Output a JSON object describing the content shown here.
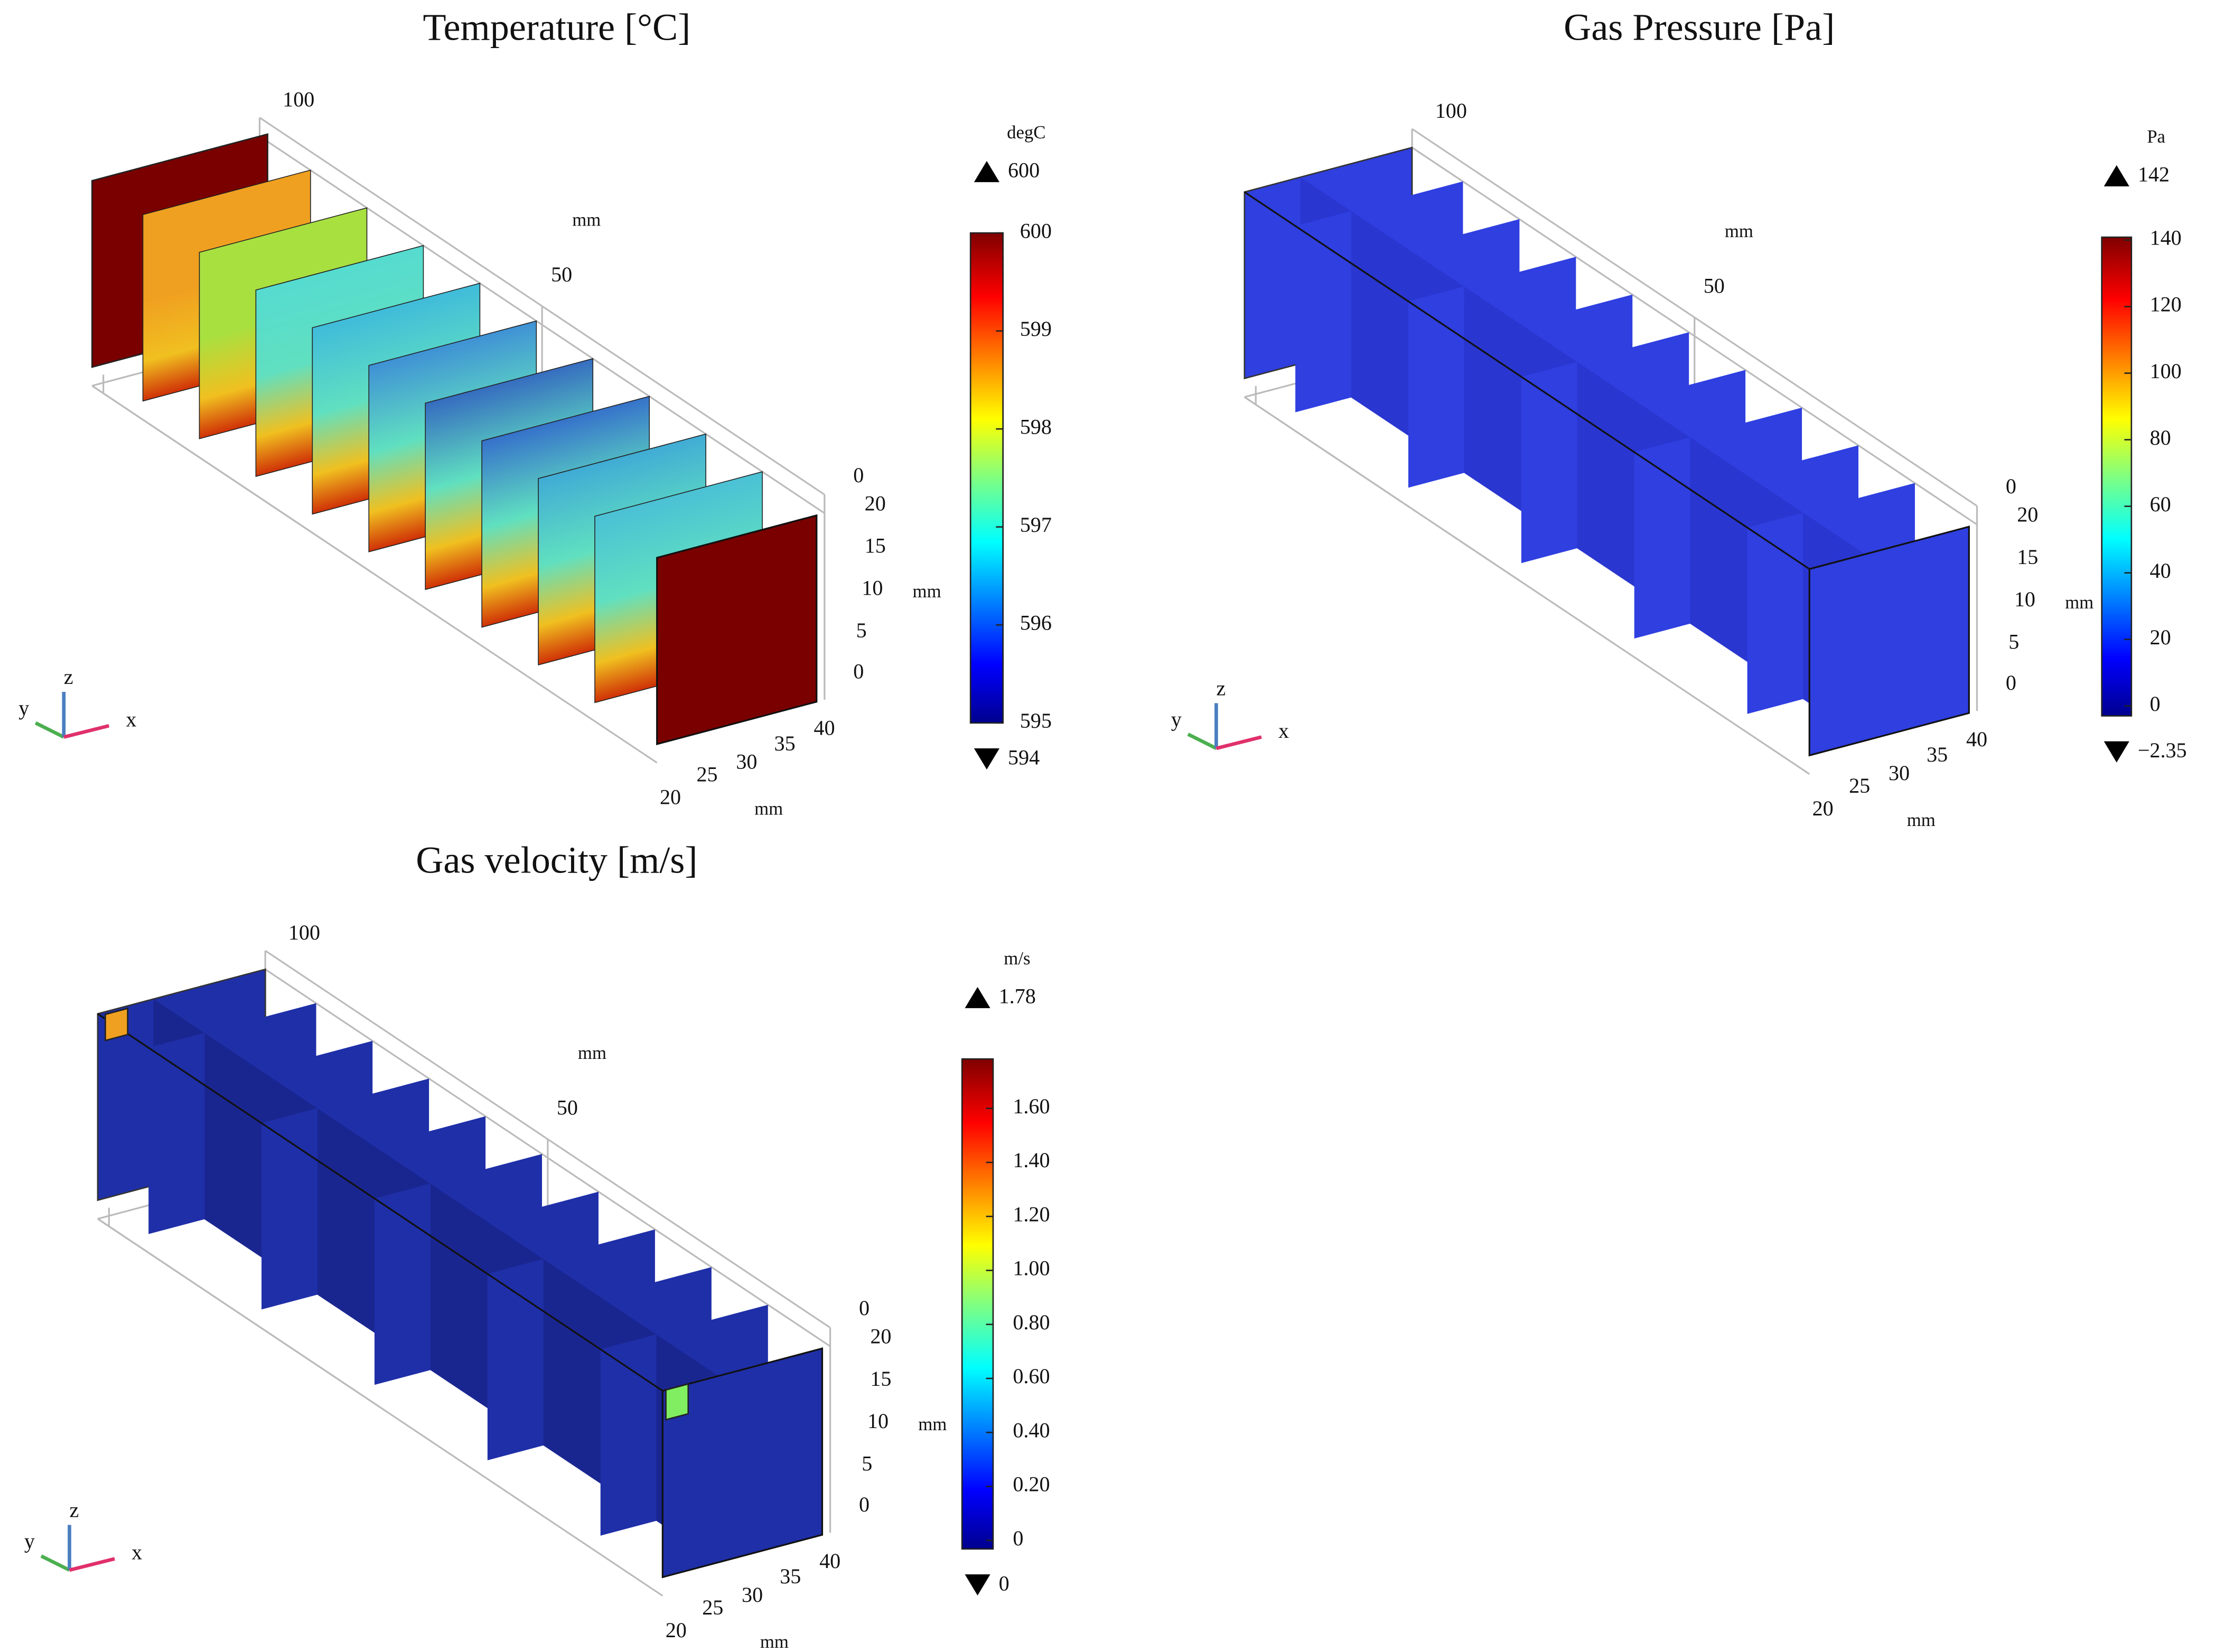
{
  "panels": [
    {
      "title": "Temperature [°C]",
      "length_ticks": [
        "100",
        "50",
        "0"
      ],
      "z_ticks": [
        "20",
        "15",
        "10",
        "5",
        "0"
      ],
      "x_ticks": [
        "20",
        "25",
        "30",
        "35",
        "40"
      ],
      "axis_labels": [
        "mm",
        "mm",
        "mm"
      ],
      "triad": [
        "y",
        "z",
        "x"
      ],
      "colorbar": {
        "unit": "degC",
        "max": "600",
        "min": "594",
        "ticks": [
          "600",
          "599",
          "598",
          "597",
          "596",
          "595"
        ]
      }
    },
    {
      "title": "Gas Pressure [Pa]",
      "length_ticks": [
        "100",
        "50",
        "0"
      ],
      "z_ticks": [
        "20",
        "15",
        "10",
        "5",
        "0"
      ],
      "x_ticks": [
        "20",
        "25",
        "30",
        "35",
        "40"
      ],
      "axis_labels": [
        "mm",
        "mm",
        "mm"
      ],
      "triad": [
        "y",
        "z",
        "x"
      ],
      "colorbar": {
        "unit": "Pa",
        "max": "142",
        "min": "−2.35",
        "ticks": [
          "140",
          "120",
          "100",
          "80",
          "60",
          "40",
          "20",
          "0"
        ]
      }
    },
    {
      "title": "Gas velocity [m/s]",
      "length_ticks": [
        "100",
        "50",
        "0"
      ],
      "z_ticks": [
        "20",
        "15",
        "10",
        "5",
        "0"
      ],
      "x_ticks": [
        "20",
        "25",
        "30",
        "35",
        "40"
      ],
      "axis_labels": [
        "mm",
        "mm",
        "mm"
      ],
      "triad": [
        "y",
        "z",
        "x"
      ],
      "colorbar": {
        "unit": "m/s",
        "max": "1.78",
        "min": "0",
        "ticks": [
          "1.60",
          "1.40",
          "1.20",
          "1.00",
          "0.80",
          "0.60",
          "0.40",
          "0.20",
          "0"
        ]
      }
    }
  ]
}
